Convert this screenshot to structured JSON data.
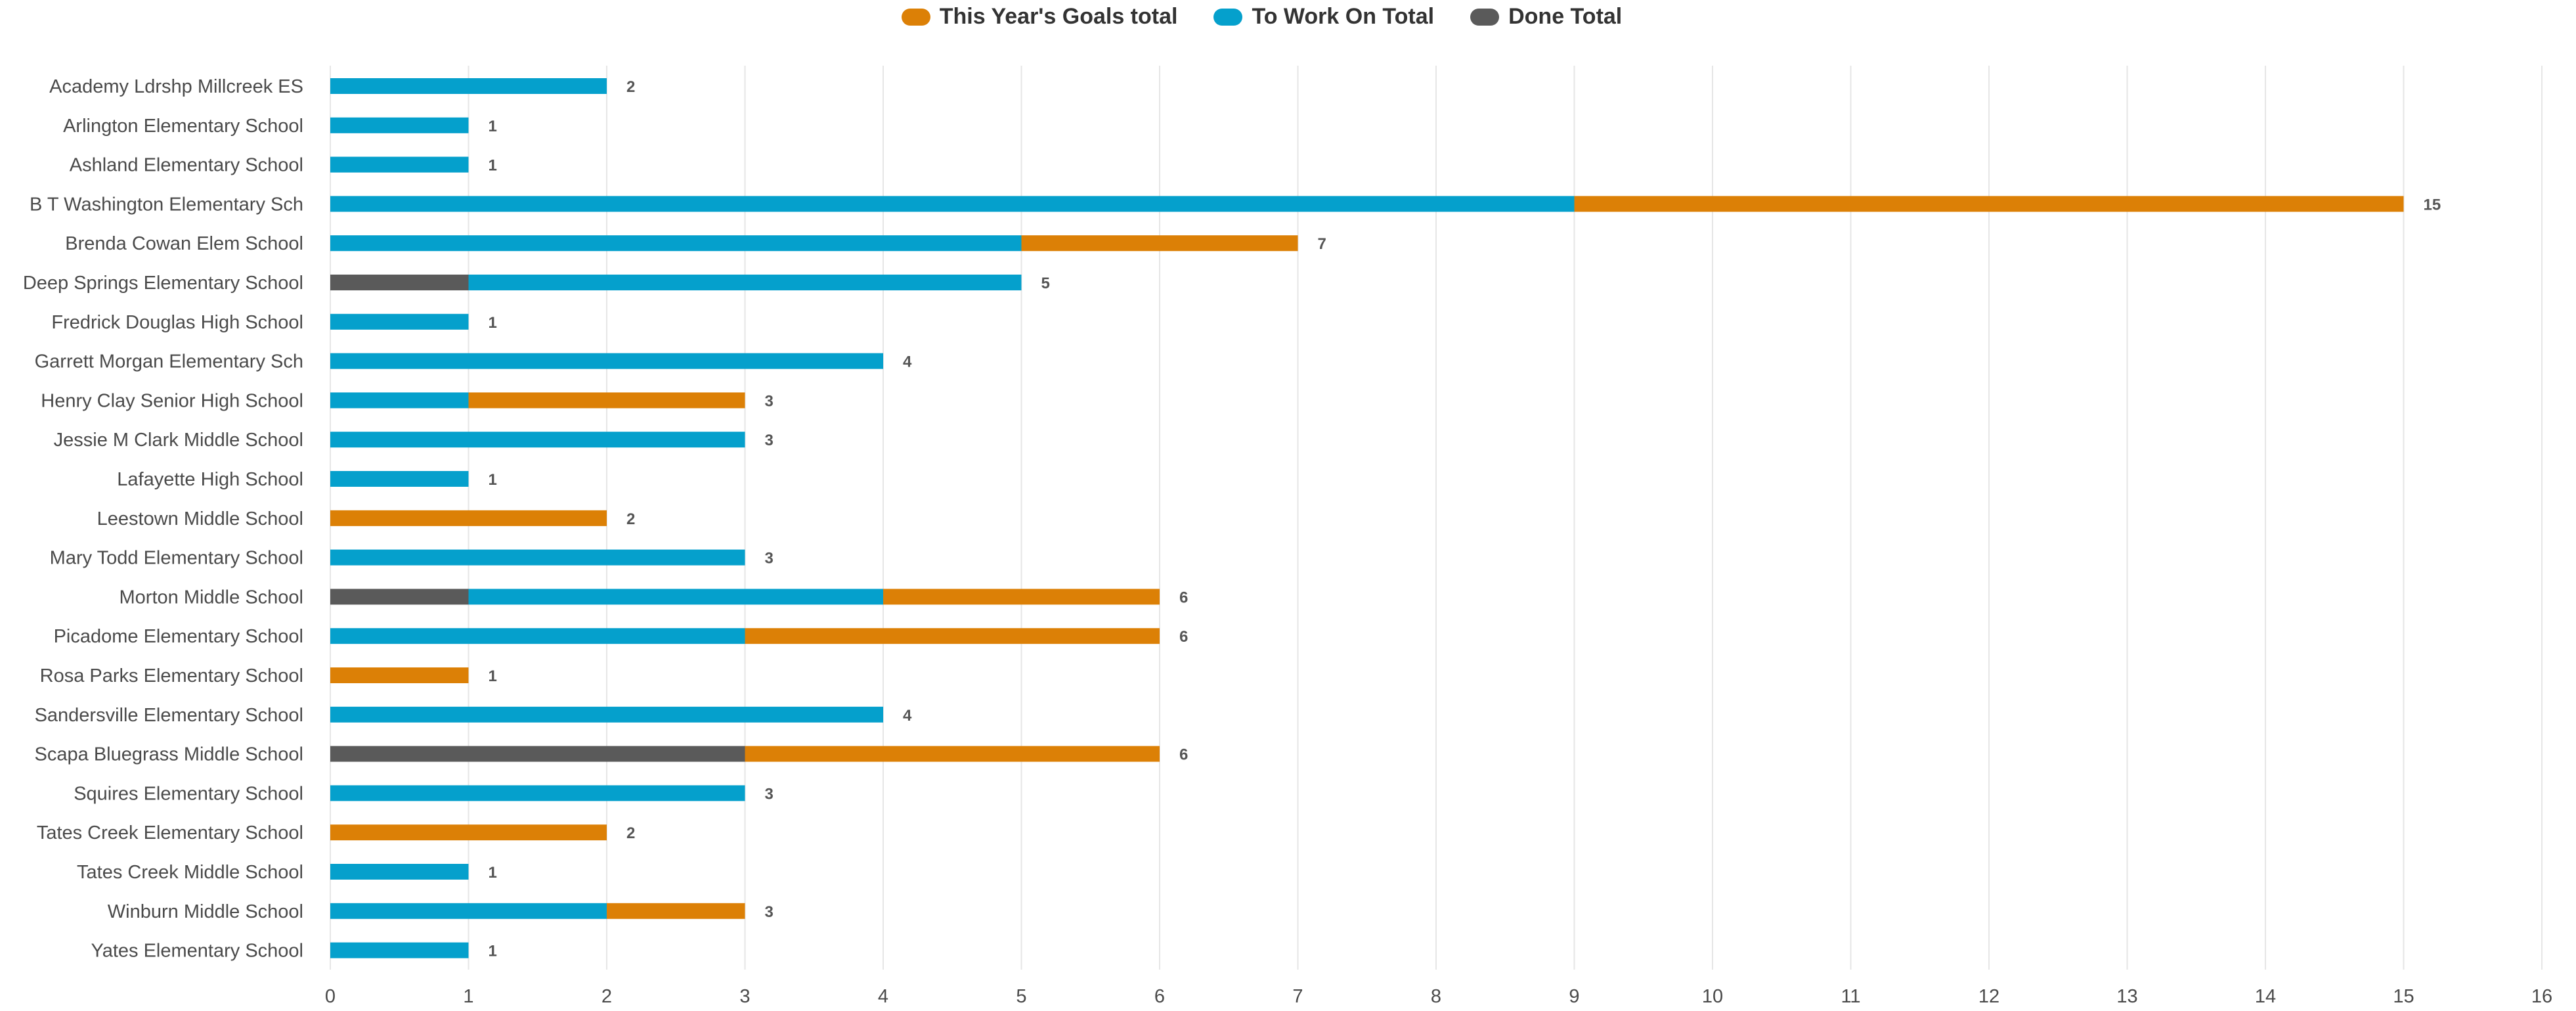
{
  "chart_data": {
    "type": "bar",
    "orientation": "horizontal",
    "stacked": true,
    "title": "",
    "xlabel": "",
    "ylabel": "",
    "xlim": [
      0,
      16
    ],
    "grid": true,
    "legend_position": "top-center",
    "x_ticks": [
      "0",
      "1",
      "2",
      "3",
      "4",
      "5",
      "6",
      "7",
      "8",
      "9",
      "10",
      "11",
      "12",
      "13",
      "14",
      "15",
      "16"
    ],
    "categories": [
      "Academy Ldrshp Millcreek ES",
      "Arlington Elementary School",
      "Ashland Elementary School",
      "B T Washington Elementary Sch",
      "Brenda Cowan Elem School",
      "Deep Springs Elementary School",
      "Fredrick Douglas High School",
      "Garrett Morgan Elementary Sch",
      "Henry Clay Senior High School",
      "Jessie M Clark Middle School",
      "Lafayette High School",
      "Leestown Middle School",
      "Mary Todd Elementary School",
      "Morton Middle School",
      "Picadome Elementary School",
      "Rosa Parks Elementary School",
      "Sandersville Elementary School",
      "Scapa Bluegrass Middle School",
      "Squires Elementary School",
      "Tates Creek Elementary School",
      "Tates Creek Middle School",
      "Winburn Middle School",
      "Yates Elementary School"
    ],
    "series": [
      {
        "name": "This Year's Goals total",
        "color": "#dc8006",
        "values": [
          0,
          0,
          0,
          6,
          2,
          0,
          0,
          0,
          2,
          0,
          0,
          2,
          0,
          2,
          3,
          1,
          0,
          3,
          0,
          2,
          0,
          1,
          0
        ]
      },
      {
        "name": "To Work On Total",
        "color": "#05a0cc",
        "values": [
          2,
          1,
          1,
          9,
          5,
          4,
          1,
          4,
          1,
          3,
          1,
          0,
          3,
          3,
          3,
          0,
          4,
          0,
          3,
          0,
          1,
          2,
          1
        ]
      },
      {
        "name": "Done Total",
        "color": "#5a5a5a",
        "values": [
          0,
          0,
          0,
          0,
          0,
          1,
          0,
          0,
          0,
          0,
          0,
          0,
          0,
          1,
          0,
          0,
          0,
          3,
          0,
          0,
          0,
          0,
          0
        ]
      }
    ],
    "totals": [
      "2",
      "1",
      "1",
      "15",
      "7",
      "5",
      "1",
      "4",
      "3",
      "3",
      "1",
      "2",
      "3",
      "6",
      "6",
      "1",
      "4",
      "6",
      "3",
      "2",
      "1",
      "3",
      "1"
    ]
  }
}
